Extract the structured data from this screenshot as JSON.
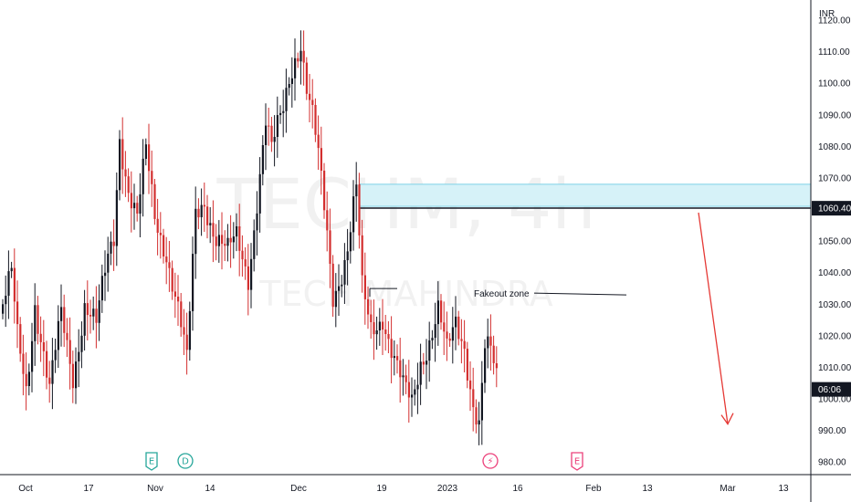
{
  "chart_data": {
    "type": "candlestick",
    "watermark": {
      "symbol": "TECHM, 4h",
      "name": "TECH MAHINDRA"
    },
    "currency": "INR",
    "y_ticks": [
      "980.00",
      "990.00",
      "1000.00",
      "1010.00",
      "1020.00",
      "1030.00",
      "1040.00",
      "1050.00",
      "1060.00",
      "1070.00",
      "1080.00",
      "1090.00",
      "1100.00",
      "1110.00",
      "1120.00"
    ],
    "x_ticks": [
      "Oct",
      "17",
      "Nov",
      "14",
      "Dec",
      "19",
      "2023",
      "16",
      "Feb",
      "13",
      "Mar",
      "13"
    ],
    "last_price": {
      "value": "1060.40",
      "level": 1060.4
    },
    "countdown": {
      "value": "06:06",
      "level": 1003
    },
    "supply_zone": {
      "from": 1061,
      "to": 1068
    },
    "annotation": {
      "text": "Fakeout zone",
      "level": 1033.5
    },
    "projection": {
      "from": 1059,
      "to": 992
    },
    "event_markers": [
      {
        "symbol": "E",
        "color": "#26a69a"
      },
      {
        "symbol": "D",
        "color": "#26a69a"
      },
      {
        "symbol": "⚡",
        "color": "#ec407a"
      },
      {
        "symbol": "E",
        "color": "#ec407a"
      }
    ],
    "colors": {
      "up": "#131722",
      "down": "#d32f2f",
      "zone": "#d6f2f8",
      "zone_border": "#7fd3e6",
      "arrow": "#e53935"
    },
    "series": {
      "name": "TECHM",
      "anchors": [
        [
          0,
          1030
        ],
        [
          3,
          1038
        ],
        [
          5,
          1018
        ],
        [
          8,
          1003
        ],
        [
          11,
          1032
        ],
        [
          14,
          1015
        ],
        [
          16,
          1002
        ],
        [
          20,
          1025
        ],
        [
          24,
          1008
        ],
        [
          28,
          1031
        ],
        [
          32,
          1022
        ],
        [
          36,
          1044
        ],
        [
          38,
          1052
        ],
        [
          40,
          1085
        ],
        [
          43,
          1067
        ],
        [
          46,
          1056
        ],
        [
          49,
          1077
        ],
        [
          52,
          1058
        ],
        [
          56,
          1048
        ],
        [
          60,
          1028
        ],
        [
          63,
          1010
        ],
        [
          66,
          1058
        ],
        [
          69,
          1064
        ],
        [
          73,
          1052
        ],
        [
          77,
          1045
        ],
        [
          80,
          1050
        ],
        [
          84,
          1040
        ],
        [
          88,
          1072
        ],
        [
          90,
          1087
        ],
        [
          92,
          1077
        ],
        [
          96,
          1092
        ],
        [
          98,
          1103
        ],
        [
          100,
          1110
        ],
        [
          102,
          1114
        ],
        [
          104,
          1098
        ],
        [
          106,
          1088
        ],
        [
          108,
          1075
        ],
        [
          111,
          1052
        ],
        [
          113,
          1034
        ],
        [
          116,
          1042
        ],
        [
          118,
          1048
        ],
        [
          120,
          1060
        ],
        [
          121,
          1065
        ],
        [
          123,
          1033
        ],
        [
          126,
          1022
        ],
        [
          130,
          1028
        ],
        [
          134,
          1012
        ],
        [
          137,
          1002
        ],
        [
          140,
          998
        ],
        [
          143,
          1013
        ],
        [
          146,
          1020
        ],
        [
          149,
          1028
        ],
        [
          152,
          1013
        ],
        [
          155,
          1023
        ],
        [
          158,
          1018
        ],
        [
          161,
          1000
        ],
        [
          163,
          992
        ],
        [
          165,
          1015
        ],
        [
          167,
          1013
        ],
        [
          169,
          1005
        ]
      ]
    }
  }
}
